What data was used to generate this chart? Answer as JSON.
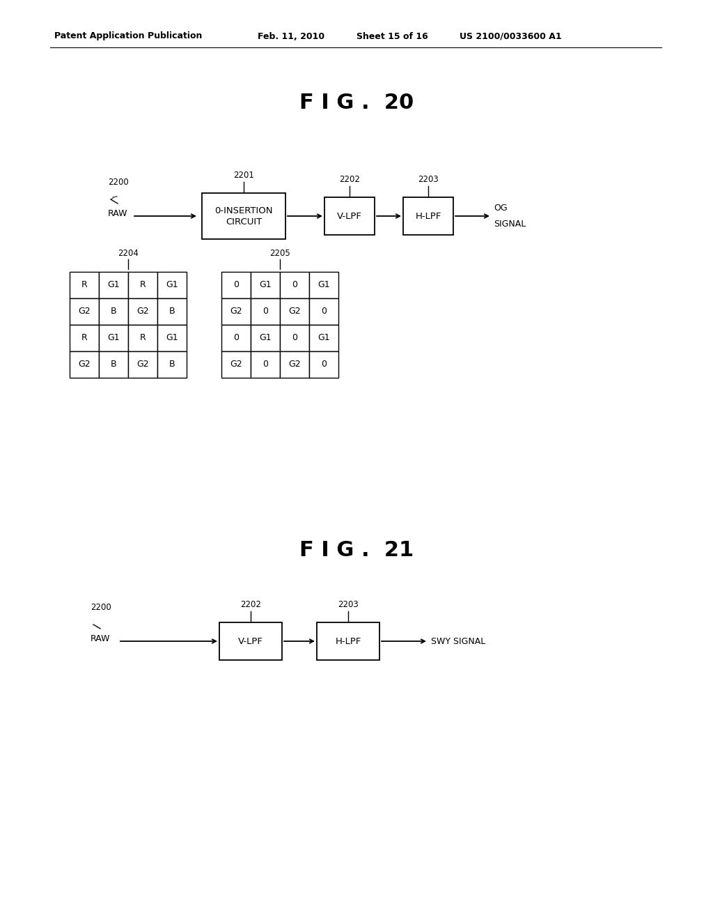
{
  "bg_color": "#ffffff",
  "header_left": "Patent Application Publication",
  "header_mid1": "Feb. 11, 2010",
  "header_mid2": "Sheet 15 of 16",
  "header_right": "US 2100/0033600 A1",
  "fig20_title": "F I G .  20",
  "fig21_title": "F I G .  21",
  "grid1": [
    [
      "R",
      "G1",
      "R",
      "G1"
    ],
    [
      "G2",
      "B",
      "G2",
      "B"
    ],
    [
      "R",
      "G1",
      "R",
      "G1"
    ],
    [
      "G2",
      "B",
      "G2",
      "B"
    ]
  ],
  "grid2": [
    [
      "0",
      "G1",
      "0",
      "G1"
    ],
    [
      "G2",
      "0",
      "G2",
      "0"
    ],
    [
      "0",
      "G1",
      "0",
      "G1"
    ],
    [
      "G2",
      "0",
      "G2",
      "0"
    ]
  ]
}
